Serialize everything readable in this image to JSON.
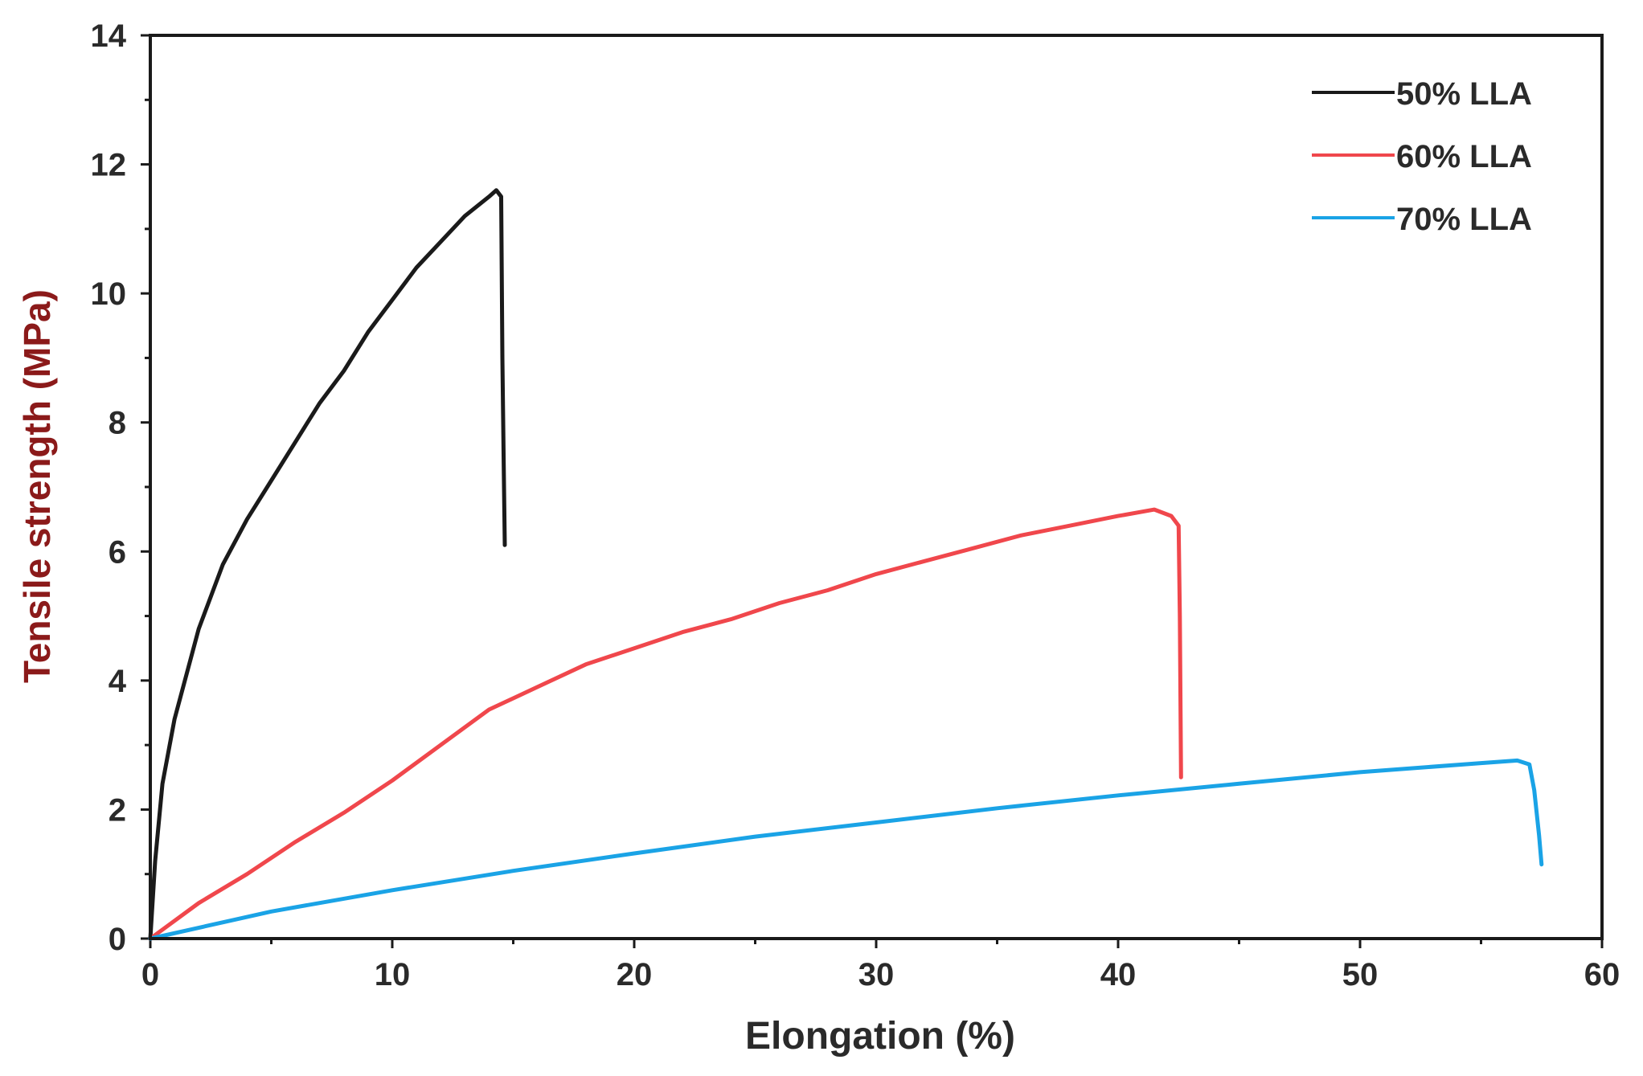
{
  "chart_data": {
    "type": "line",
    "title": "",
    "xlabel": "Elongation (%)",
    "ylabel": "Tensile strength (MPa)",
    "xlim": [
      0,
      60
    ],
    "ylim": [
      0,
      14
    ],
    "xticks": [
      "0",
      "10",
      "20",
      "30",
      "40",
      "50",
      "60"
    ],
    "yticks": [
      "0",
      "2",
      "4",
      "6",
      "8",
      "10",
      "12",
      "14"
    ],
    "grid": false,
    "legend_position": "top-right",
    "ylabel_color": "#8b1a1a",
    "series": [
      {
        "name": "50% LLA",
        "color": "#1a1a1a",
        "points": [
          [
            0,
            0
          ],
          [
            0.2,
            1.2
          ],
          [
            0.5,
            2.4
          ],
          [
            1,
            3.4
          ],
          [
            2,
            4.8
          ],
          [
            3,
            5.8
          ],
          [
            4,
            6.5
          ],
          [
            5,
            7.1
          ],
          [
            6,
            7.7
          ],
          [
            7,
            8.3
          ],
          [
            8,
            8.8
          ],
          [
            9,
            9.4
          ],
          [
            10,
            9.9
          ],
          [
            11,
            10.4
          ],
          [
            12,
            10.8
          ],
          [
            13,
            11.2
          ],
          [
            14,
            11.5
          ],
          [
            14.3,
            11.6
          ],
          [
            14.5,
            11.5
          ],
          [
            14.55,
            9.0
          ],
          [
            14.6,
            7.5
          ],
          [
            14.65,
            6.1
          ]
        ]
      },
      {
        "name": "60% LLA",
        "color": "#f0474c",
        "points": [
          [
            0,
            0
          ],
          [
            2,
            0.55
          ],
          [
            4,
            1.0
          ],
          [
            6,
            1.5
          ],
          [
            8,
            1.95
          ],
          [
            10,
            2.45
          ],
          [
            12,
            3.0
          ],
          [
            14,
            3.55
          ],
          [
            16,
            3.9
          ],
          [
            18,
            4.25
          ],
          [
            20,
            4.5
          ],
          [
            22,
            4.75
          ],
          [
            24,
            4.95
          ],
          [
            26,
            5.2
          ],
          [
            28,
            5.4
          ],
          [
            30,
            5.65
          ],
          [
            32,
            5.85
          ],
          [
            34,
            6.05
          ],
          [
            36,
            6.25
          ],
          [
            38,
            6.4
          ],
          [
            40,
            6.55
          ],
          [
            41.5,
            6.65
          ],
          [
            42.2,
            6.55
          ],
          [
            42.5,
            6.4
          ],
          [
            42.55,
            5.0
          ],
          [
            42.6,
            2.5
          ]
        ]
      },
      {
        "name": "70% LLA",
        "color": "#1aa3e6",
        "points": [
          [
            0,
            0
          ],
          [
            5,
            0.42
          ],
          [
            10,
            0.75
          ],
          [
            15,
            1.05
          ],
          [
            20,
            1.32
          ],
          [
            25,
            1.58
          ],
          [
            30,
            1.8
          ],
          [
            35,
            2.02
          ],
          [
            40,
            2.22
          ],
          [
            45,
            2.4
          ],
          [
            50,
            2.58
          ],
          [
            55,
            2.72
          ],
          [
            56.5,
            2.76
          ],
          [
            57,
            2.7
          ],
          [
            57.2,
            2.3
          ],
          [
            57.4,
            1.6
          ],
          [
            57.5,
            1.15
          ]
        ]
      }
    ]
  }
}
